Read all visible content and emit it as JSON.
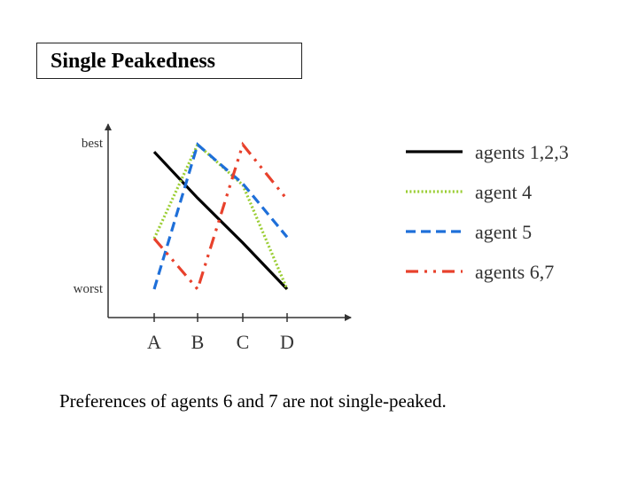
{
  "title": "Single Peakedness",
  "caption": "Preferences of agents 6 and 7 are not single-peaked.",
  "chart_data": {
    "type": "line",
    "categories": [
      "A",
      "B",
      "C",
      "D"
    ],
    "y_top_label": "best",
    "y_bottom_label": "worst",
    "ylim": [
      0,
      1
    ],
    "legend_position": "right",
    "series": [
      {
        "name": "agents 1,2,3",
        "color": "#000000",
        "dash": "solid",
        "values": [
          0.95,
          0.63,
          0.32,
          0.0
        ]
      },
      {
        "name": "agent 4",
        "color": "#9acd32",
        "dash": "dotted",
        "values": [
          0.35,
          1.0,
          0.72,
          0.0
        ]
      },
      {
        "name": "agent 5",
        "color": "#1e6fd9",
        "dash": "dashed",
        "values": [
          0.0,
          1.0,
          0.73,
          0.36
        ]
      },
      {
        "name": "agents 6,7",
        "color": "#e8412c",
        "dash": "dashdotdot",
        "values": [
          0.35,
          0.0,
          1.0,
          0.62
        ]
      }
    ]
  }
}
